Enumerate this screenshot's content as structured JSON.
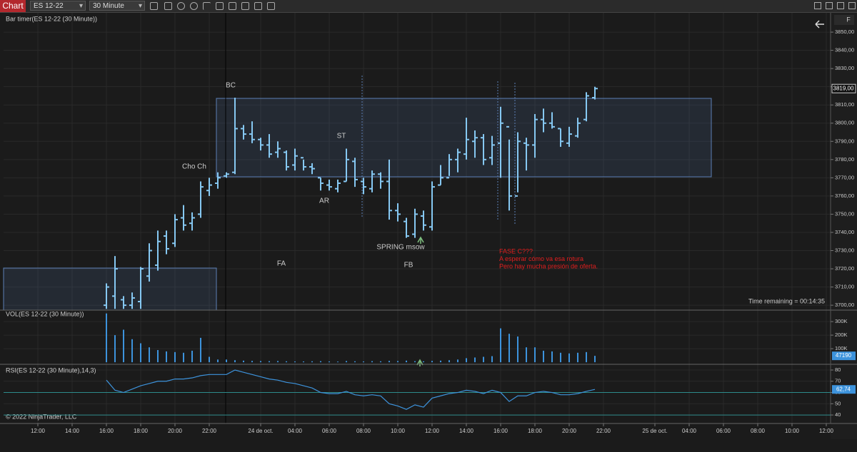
{
  "toolbar": {
    "tab": "Chart",
    "instrument": "ES 12-22",
    "interval": "30 Minute"
  },
  "side_button": "F",
  "time_remaining": "Time remaining = 00:14:35",
  "copyright": "© 2022 NinjaTrader, LLC",
  "xaxis": {
    "xlim": [
      10,
      58.25
    ],
    "xticks": [
      {
        "value": 12,
        "label": "12:00"
      },
      {
        "value": 14,
        "label": "14:00"
      },
      {
        "value": 16,
        "label": "16:00"
      },
      {
        "value": 18,
        "label": "18:00"
      },
      {
        "value": 20,
        "label": "20:00"
      },
      {
        "value": 22,
        "label": "22:00"
      },
      {
        "value": 25,
        "label": "24 de oct."
      },
      {
        "value": 27,
        "label": "04:00"
      },
      {
        "value": 29,
        "label": "06:00"
      },
      {
        "value": 31,
        "label": "08:00"
      },
      {
        "value": 33,
        "label": "10:00"
      },
      {
        "value": 35,
        "label": "12:00"
      },
      {
        "value": 37,
        "label": "14:00"
      },
      {
        "value": 39,
        "label": "16:00"
      },
      {
        "value": 41,
        "label": "18:00"
      },
      {
        "value": 43,
        "label": "20:00"
      },
      {
        "value": 45,
        "label": "22:00"
      },
      {
        "value": 48,
        "label": "25 de oct."
      },
      {
        "value": 50,
        "label": "04:00"
      },
      {
        "value": 52,
        "label": "06:00"
      },
      {
        "value": 54,
        "label": "08:00"
      },
      {
        "value": 56,
        "label": "10:00"
      },
      {
        "value": 58,
        "label": "12:00"
      }
    ]
  },
  "chart_data": [
    {
      "type": "ohlc",
      "title": "Bar timer(ES 12-22 (30 Minute))",
      "color": "#86c8f2",
      "x": [
        16,
        16.5,
        17,
        17.5,
        18,
        18.5,
        19,
        19.5,
        20,
        20.5,
        21,
        21.5,
        22,
        22.5,
        23,
        23.5,
        24,
        24.5,
        25,
        25.5,
        26,
        26.5,
        27,
        27.5,
        28,
        28.5,
        29,
        29.5,
        30,
        30.5,
        31,
        31.5,
        32,
        32.5,
        33,
        33.5,
        34,
        34.5,
        35,
        35.5,
        36,
        36.5,
        37,
        37.5,
        38,
        38.5,
        39,
        39.5,
        40,
        40.5,
        41,
        41.5,
        42,
        42.5,
        43,
        43.5,
        44,
        44.5
      ],
      "bars": [
        [
          3700,
          3712,
          3698,
          3710
        ],
        [
          3705,
          3727,
          3698,
          3720
        ],
        [
          3703,
          3705,
          3698,
          3700
        ],
        [
          3700,
          3707,
          3698,
          3704
        ],
        [
          3702,
          3721,
          3698,
          3720
        ],
        [
          3716,
          3734,
          3713,
          3730
        ],
        [
          3722,
          3741,
          3719,
          3735
        ],
        [
          3738,
          3741,
          3728,
          3731
        ],
        [
          3734,
          3750,
          3732,
          3747
        ],
        [
          3748,
          3755,
          3741,
          3744
        ],
        [
          3745,
          3751,
          3741,
          3748
        ],
        [
          3750,
          3768,
          3748,
          3765
        ],
        [
          3763,
          3770,
          3760,
          3766
        ],
        [
          3767,
          3773,
          3764,
          3770
        ],
        [
          3771,
          3773,
          3770,
          3772
        ],
        [
          3773,
          3814,
          3772,
          3797
        ],
        [
          3797,
          3799,
          3791,
          3794
        ],
        [
          3794,
          3801,
          3789,
          3791
        ],
        [
          3791,
          3792,
          3785,
          3788
        ],
        [
          3788,
          3794,
          3781,
          3783
        ],
        [
          3784,
          3790,
          3781,
          3786
        ],
        [
          3784,
          3785,
          3774,
          3776
        ],
        [
          3777,
          3786,
          3774,
          3782
        ],
        [
          3781,
          3780,
          3774,
          3776
        ],
        [
          3776,
          3778,
          3772,
          3775
        ],
        [
          3770,
          3770,
          3763,
          3767
        ],
        [
          3766,
          3769,
          3763,
          3765
        ],
        [
          3764,
          3769,
          3762,
          3767
        ],
        [
          3768,
          3786,
          3768,
          3780
        ],
        [
          3779,
          3781,
          3765,
          3769
        ],
        [
          3768,
          3770,
          3761,
          3765
        ],
        [
          3764,
          3774,
          3762,
          3772
        ],
        [
          3772,
          3773,
          3764,
          3768
        ],
        [
          3768,
          3780,
          3747,
          3752
        ],
        [
          3752,
          3756,
          3746,
          3750
        ],
        [
          3746,
          3748,
          3737,
          3738
        ],
        [
          3739,
          3753,
          3737,
          3750
        ],
        [
          3749,
          3752,
          3741,
          3744
        ],
        [
          3743,
          3768,
          3741,
          3765
        ],
        [
          3766,
          3777,
          3766,
          3770
        ],
        [
          3770,
          3783,
          3771,
          3780
        ],
        [
          3780,
          3786,
          3773,
          3784
        ],
        [
          3783,
          3803,
          3780,
          3791
        ],
        [
          3790,
          3796,
          3781,
          3792
        ],
        [
          3792,
          3794,
          3777,
          3780
        ],
        [
          3781,
          3793,
          3777,
          3788
        ],
        [
          3789,
          3809,
          3770,
          3800
        ],
        [
          3798,
          3791,
          3752,
          3760
        ],
        [
          3760,
          3795,
          3762,
          3790
        ],
        [
          3789,
          3792,
          3774,
          3788
        ],
        [
          3788,
          3805,
          3781,
          3802
        ],
        [
          3802,
          3808,
          3795,
          3800
        ],
        [
          3800,
          3806,
          3797,
          3798
        ],
        [
          3797,
          3797,
          3787,
          3790
        ],
        [
          3789,
          3798,
          3787,
          3794
        ],
        [
          3793,
          3803,
          3792,
          3800
        ],
        [
          3802,
          3817,
          3801,
          3815
        ],
        [
          3814,
          3820,
          3813,
          3819
        ]
      ],
      "ylim": [
        3697.3,
        3860.6
      ],
      "yticks": [
        {
          "value": 3850,
          "label": "3850,00"
        },
        {
          "value": 3840,
          "label": "3840,00"
        },
        {
          "value": 3830,
          "label": "3830,00"
        },
        {
          "value": 3820,
          "label": "3820,00"
        },
        {
          "value": 3810,
          "label": "3810,00"
        },
        {
          "value": 3800,
          "label": "3800,00"
        },
        {
          "value": 3790,
          "label": "3790,00"
        },
        {
          "value": 3780,
          "label": "3780,00"
        },
        {
          "value": 3770,
          "label": "3770,00"
        },
        {
          "value": 3760,
          "label": "3760,00"
        },
        {
          "value": 3750,
          "label": "3750,00"
        },
        {
          "value": 3740,
          "label": "3740,00"
        },
        {
          "value": 3730,
          "label": "3730,00"
        },
        {
          "value": 3720,
          "label": "3720,00"
        },
        {
          "value": 3710,
          "label": "3710,00"
        },
        {
          "value": 3700,
          "label": "3700,00"
        }
      ],
      "last_price": {
        "value": 3819,
        "label": "3819,00"
      },
      "annotations": [
        "BC",
        "Cho Ch",
        "ST",
        "AR",
        "SPRING msow",
        "FA",
        "FB"
      ],
      "notes": [
        "FASE C???",
        "A esperar cómo va esa rotura",
        "Pero hay mucha presión de oferta."
      ],
      "notes_color": "#e01e1e"
    },
    {
      "type": "bar",
      "title": "VOL(ES 12-22 (30 Minute))",
      "color": "#3d93dc",
      "values": [
        360000,
        200000,
        240000,
        170000,
        140000,
        110000,
        90000,
        80000,
        75000,
        70000,
        85000,
        180000,
        40000,
        20000,
        20000,
        15000,
        12000,
        10000,
        9000,
        8000,
        9000,
        7000,
        6000,
        6000,
        7000,
        8000,
        6000,
        5000,
        9000,
        7000,
        6000,
        8000,
        7000,
        10000,
        9000,
        12000,
        8000,
        7000,
        10000,
        12000,
        15000,
        20000,
        30000,
        35000,
        40000,
        45000,
        250000,
        210000,
        190000,
        110000,
        110000,
        85000,
        80000,
        70000,
        65000,
        70000,
        75000,
        47190
      ],
      "ylim": [
        -10000,
        374000
      ],
      "yticks": [
        {
          "value": 300000,
          "label": "300K"
        },
        {
          "value": 200000,
          "label": "200K"
        },
        {
          "value": 100000,
          "label": "100K"
        }
      ],
      "last_value": 47190
    },
    {
      "type": "line",
      "title": "RSI(ES 12-22 (30 Minute),14,3)",
      "color": "#3d93dc",
      "level_color": "#2e8c8c",
      "values": [
        71,
        62,
        60,
        63,
        66,
        68,
        70,
        70,
        72,
        72,
        73,
        75,
        76,
        76,
        76,
        80,
        78,
        76,
        74,
        72,
        71,
        69,
        68,
        66,
        64,
        60,
        59,
        59,
        61,
        58,
        57,
        58,
        57,
        50,
        48,
        45,
        49,
        47,
        55,
        57,
        59,
        60,
        62,
        61,
        59,
        62,
        60,
        52,
        57,
        57,
        60,
        61,
        60,
        58,
        58,
        59,
        61,
        62.74
      ],
      "ylim": [
        33.7,
        83.8
      ],
      "yticks": [
        80,
        70,
        60,
        50,
        40
      ],
      "levels": [
        60,
        40
      ],
      "last_value": {
        "value": 62.74,
        "label": "62,74"
      }
    }
  ]
}
